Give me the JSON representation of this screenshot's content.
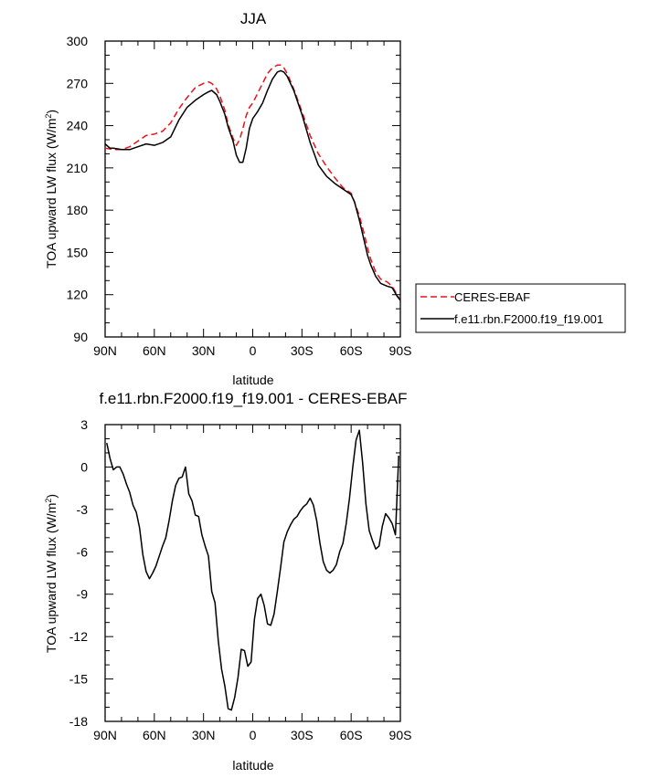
{
  "chart_data": [
    {
      "type": "line",
      "title": "JJA",
      "xlabel": "latitude",
      "ylabel": "TOA upward LW flux (W/m",
      "ylabel_sup": "2",
      "ylabel_end": ")",
      "xlim": [
        -90,
        90
      ],
      "ylim": [
        90,
        300
      ],
      "x_ticks": [
        -90,
        -60,
        -30,
        0,
        30,
        60,
        90
      ],
      "x_tick_labels": [
        "90N",
        "60N",
        "30N",
        "0",
        "30S",
        "60S",
        "90S"
      ],
      "y_ticks": [
        90,
        120,
        150,
        180,
        210,
        240,
        270,
        300
      ],
      "y_tick_labels": [
        "90",
        "120",
        "150",
        "180",
        "210",
        "240",
        "270",
        "300"
      ],
      "grid": false,
      "legend_position": "right",
      "series": [
        {
          "name": "CERES-EBAF",
          "color": "#e8121b",
          "dash": "dashed",
          "x": [
            -90,
            -85,
            -80,
            -75,
            -70,
            -65,
            -60,
            -55,
            -50,
            -45,
            -40,
            -35,
            -30,
            -27,
            -25,
            -22,
            -20,
            -17,
            -15,
            -12,
            -10,
            -8,
            -6,
            -4,
            -2,
            0,
            3,
            6,
            9,
            12,
            15,
            17,
            19,
            21,
            25,
            30,
            35,
            40,
            45,
            50,
            55,
            60,
            62,
            65,
            68,
            70,
            72,
            75,
            78,
            80,
            82,
            85,
            88,
            90
          ],
          "y": [
            224,
            223,
            223,
            225,
            229,
            233,
            234,
            236,
            242,
            252,
            260,
            267,
            270,
            271,
            270,
            266,
            261,
            251,
            241,
            231,
            226,
            230,
            238,
            247,
            253,
            256,
            263,
            270,
            277,
            281,
            283,
            283,
            281,
            277,
            266,
            250,
            233,
            220,
            211,
            203,
            196,
            192,
            186,
            176,
            163,
            153,
            145,
            136,
            131,
            130,
            129,
            126,
            120,
            116
          ]
        },
        {
          "name": "f.e11.rbn.F2000.f19_f19.001",
          "color": "#000000",
          "dash": "solid",
          "x": [
            -90,
            -87,
            -85,
            -80,
            -75,
            -70,
            -65,
            -60,
            -55,
            -50,
            -45,
            -40,
            -35,
            -30,
            -27,
            -25,
            -22,
            -20,
            -17,
            -15,
            -12,
            -10,
            -8,
            -6,
            -4,
            -2,
            0,
            3,
            6,
            9,
            12,
            15,
            17,
            19,
            21,
            25,
            30,
            35,
            40,
            45,
            50,
            55,
            60,
            62,
            65,
            68,
            70,
            72,
            75,
            78,
            80,
            82,
            85,
            88,
            90
          ],
          "y": [
            227,
            224,
            224,
            223,
            223,
            225,
            227,
            226,
            228,
            232,
            244,
            253,
            258,
            262,
            264,
            265,
            262,
            257,
            248,
            239,
            229,
            219,
            214,
            214,
            224,
            238,
            245,
            250,
            256,
            265,
            273,
            278,
            279,
            278,
            275,
            265,
            248,
            228,
            212,
            204,
            199,
            195,
            191,
            186,
            173,
            158,
            148,
            141,
            133,
            128,
            127,
            126,
            125,
            119,
            116
          ]
        }
      ]
    },
    {
      "type": "line",
      "title": "f.e11.rbn.F2000.f19_f19.001 - CERES-EBAF",
      "xlabel": "latitude",
      "ylabel": "TOA upward LW flux (W/m",
      "ylabel_sup": "2",
      "ylabel_end": ")",
      "xlim": [
        -90,
        90
      ],
      "ylim": [
        -18,
        3
      ],
      "x_ticks": [
        -90,
        -60,
        -30,
        0,
        30,
        60,
        90
      ],
      "x_tick_labels": [
        "90N",
        "60N",
        "30N",
        "0",
        "30S",
        "60S",
        "90S"
      ],
      "y_ticks": [
        -18,
        -15,
        -12,
        -9,
        -6,
        -3,
        0,
        3
      ],
      "y_tick_labels": [
        "-18",
        "-15",
        "-12",
        "-9",
        "-6",
        "-3",
        "0",
        "3"
      ],
      "grid": false,
      "series": [
        {
          "color": "#000000",
          "dash": "solid",
          "x": [
            -89,
            -87,
            -85,
            -83,
            -81,
            -79,
            -77,
            -75,
            -73,
            -71,
            -69,
            -67,
            -65,
            -63,
            -61,
            -59,
            -57,
            -55,
            -53,
            -51,
            -49,
            -47,
            -45,
            -43,
            -41,
            -39,
            -37,
            -35,
            -33,
            -31,
            -29,
            -27,
            -25,
            -23,
            -21,
            -19,
            -17,
            -15,
            -13,
            -11,
            -9,
            -7,
            -5,
            -3,
            -1,
            1,
            3,
            5,
            7,
            9,
            11,
            13,
            15,
            17,
            19,
            21,
            23,
            25,
            27,
            29,
            31,
            33,
            35,
            37,
            39,
            41,
            43,
            45,
            47,
            49,
            51,
            53,
            55,
            57,
            59,
            61,
            63,
            65,
            67,
            69,
            71,
            73,
            75,
            77,
            79,
            81,
            83,
            85,
            87,
            89
          ],
          "y": [
            1.7,
            0.6,
            -0.2,
            0.0,
            0.0,
            -0.5,
            -1.2,
            -1.8,
            -2.7,
            -3.2,
            -4.3,
            -6.2,
            -7.4,
            -7.9,
            -7.5,
            -7.0,
            -6.3,
            -5.6,
            -5.0,
            -3.8,
            -2.4,
            -1.3,
            -0.8,
            -0.7,
            0.0,
            -1.9,
            -2.4,
            -3.4,
            -3.5,
            -4.8,
            -5.6,
            -6.3,
            -8.8,
            -9.6,
            -12.3,
            -14.3,
            -15.5,
            -17.1,
            -17.2,
            -16.3,
            -14.9,
            -12.9,
            -13.0,
            -14.1,
            -13.8,
            -10.8,
            -9.3,
            -9.0,
            -9.8,
            -11.1,
            -11.2,
            -10.4,
            -8.8,
            -7.1,
            -5.3,
            -4.6,
            -4.1,
            -3.7,
            -3.5,
            -3.1,
            -2.8,
            -2.6,
            -2.2,
            -2.7,
            -3.8,
            -5.4,
            -6.7,
            -7.3,
            -7.5,
            -7.3,
            -6.9,
            -6.0,
            -5.4,
            -4.0,
            -2.2,
            0.0,
            1.9,
            2.6,
            0.3,
            -2.6,
            -4.5,
            -5.2,
            -5.8,
            -5.6,
            -4.2,
            -3.3,
            -3.6,
            -4.0,
            -4.8,
            0.8
          ]
        }
      ]
    }
  ]
}
